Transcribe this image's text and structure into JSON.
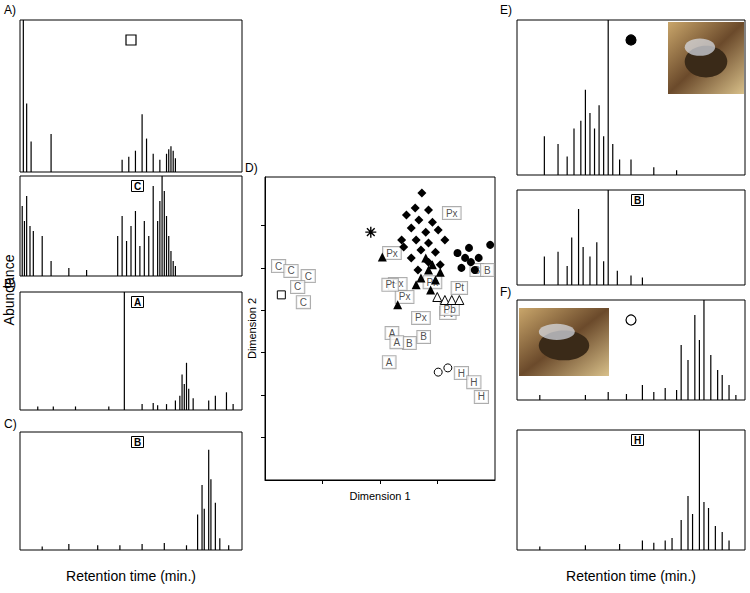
{
  "figure": {
    "y_label": "Abundance",
    "x_labels": [
      "Retention time (min.)",
      "Retention time (min.)"
    ]
  },
  "chart_data": [
    {
      "type": "chromatogram",
      "panel": "A)",
      "marker": "open_square",
      "xlim": [
        0,
        100
      ],
      "ylim": [
        0,
        100
      ],
      "tick_labels": false,
      "series": [
        {
          "x": [
            1.5,
            3,
            5,
            14,
            46,
            49,
            52,
            55,
            57,
            60,
            63,
            66,
            67,
            68,
            69,
            70
          ],
          "values": [
            100,
            45,
            20,
            25,
            8,
            10,
            14,
            38,
            22,
            12,
            8,
            12,
            15,
            17,
            14,
            9
          ]
        }
      ]
    },
    {
      "type": "chromatogram",
      "label": "C",
      "xlim": [
        0,
        100
      ],
      "ylim": [
        0,
        100
      ],
      "tick_labels": false,
      "series": [
        {
          "x": [
            1,
            2,
            3,
            4.5,
            6,
            10,
            14,
            22,
            30,
            44,
            46,
            48,
            50,
            52,
            54,
            56,
            58,
            60,
            62,
            63,
            64,
            65,
            66,
            67,
            68,
            69,
            70
          ],
          "values": [
            70,
            55,
            80,
            50,
            45,
            40,
            15,
            8,
            6,
            40,
            60,
            35,
            50,
            65,
            30,
            55,
            40,
            90,
            55,
            75,
            100,
            85,
            60,
            40,
            25,
            15,
            10
          ]
        }
      ]
    },
    {
      "type": "chromatogram",
      "panel": "B)",
      "label": "A",
      "xlim": [
        0,
        100
      ],
      "ylim": [
        0,
        100
      ],
      "tick_labels": false,
      "series": [
        {
          "x": [
            8,
            15,
            25,
            40,
            47,
            55,
            60,
            62,
            66,
            70,
            72,
            73,
            74,
            75,
            76,
            78,
            85,
            88,
            93,
            96
          ],
          "values": [
            3,
            3,
            3,
            3,
            100,
            5,
            6,
            4,
            5,
            8,
            12,
            30,
            22,
            40,
            18,
            10,
            8,
            12,
            15,
            5
          ]
        }
      ]
    },
    {
      "type": "chromatogram",
      "panel": "C)",
      "label": "B",
      "xlim": [
        0,
        100
      ],
      "ylim": [
        0,
        100
      ],
      "tick_labels": false,
      "series": [
        {
          "x": [
            10,
            22,
            35,
            45,
            55,
            65,
            75,
            80,
            82,
            83,
            85,
            86,
            88,
            90,
            94
          ],
          "values": [
            3,
            5,
            4,
            4,
            5,
            6,
            4,
            30,
            55,
            35,
            85,
            60,
            40,
            10,
            4
          ]
        }
      ]
    },
    {
      "type": "scatter",
      "panel": "D)",
      "x_label": "Dimension 1",
      "y_label": "Dimension 2",
      "xlim": [
        0,
        100
      ],
      "ylim": [
        0,
        100
      ],
      "xticks": [
        25,
        50,
        75
      ],
      "yticks": [
        14,
        28,
        42,
        56,
        70,
        84
      ],
      "tick_labels": false,
      "series": [
        {
          "marker": "open_square",
          "x": [
            7.1
          ],
          "y": [
            61.1
          ]
        },
        {
          "marker": "boxed_text",
          "label": "C",
          "x": [
            5.9,
            11.3,
            18.8,
            14.2,
            16.7
          ],
          "y": [
            70.6,
            69.0,
            67.3,
            63.7,
            58.7
          ]
        },
        {
          "marker": "asterisk",
          "x": [
            46.0
          ],
          "y": [
            81.8
          ]
        },
        {
          "marker": "diamond",
          "x": [
            68.2,
            65.3,
            71.1,
            61.5,
            66.9,
            72.8,
            63.6,
            69.9,
            75.3,
            59.4,
            65.7,
            71.1,
            67.8,
            74.1,
            63.6,
            71.1,
            76.2,
            66.5,
            60.3,
            78.2
          ],
          "y": [
            94.7,
            89.8,
            89.1,
            87.5,
            85.8,
            85.1,
            83.2,
            81.8,
            82.5,
            79.2,
            79.2,
            78.2,
            75.9,
            75.2,
            73.3,
            71.9,
            71.0,
            69.3,
            76.9,
            79.2
          ]
        },
        {
          "marker": "triangle",
          "x": [
            51.0,
            69.9,
            72.8,
            71.1,
            67.8,
            74.1,
            76.2,
            57.7,
            72.0,
            65.7
          ],
          "y": [
            73.6,
            73.3,
            71.0,
            69.3,
            66.7,
            66.0,
            68.6,
            57.8,
            62.7,
            64.4
          ]
        },
        {
          "marker": "open_triangle",
          "x": [
            74.9,
            78.2,
            81.2,
            84.5
          ],
          "y": [
            60.4,
            59.4,
            59.4,
            59.4
          ]
        },
        {
          "marker": "circle",
          "x": [
            83.7,
            87.0,
            89.5,
            92.9,
            97.9,
            85.4,
            91.2,
            88.7
          ],
          "y": [
            74.9,
            73.3,
            71.9,
            73.3,
            77.6,
            70.0,
            69.3,
            76.6
          ]
        },
        {
          "marker": "open_circle",
          "x": [
            75.3,
            79.5
          ],
          "y": [
            35.6,
            37.0
          ]
        },
        {
          "marker": "boxed_text",
          "label": "H",
          "x": [
            85.4,
            90.8,
            94.1
          ],
          "y": [
            35.3,
            32.3,
            27.4
          ]
        },
        {
          "marker": "boxed_text",
          "label": "B",
          "x": [
            92.1,
            96.7,
            62.8,
            69.0
          ],
          "y": [
            69.3,
            69.3,
            45.2,
            47.2
          ]
        },
        {
          "marker": "boxed_text",
          "label": "A",
          "x": [
            55.2,
            57.3,
            54.0
          ],
          "y": [
            48.5,
            45.5,
            38.9
          ]
        },
        {
          "marker": "boxed_text",
          "label": "Px",
          "x": [
            81.2,
            55.2,
            57.7,
            60.7,
            67.8,
            72.8
          ],
          "y": [
            88.1,
            74.9,
            64.7,
            60.4,
            53.5,
            65.3
          ]
        },
        {
          "marker": "boxed_text",
          "label": "Pt",
          "x": [
            54.4,
            84.5,
            79.5
          ],
          "y": [
            64.4,
            63.4,
            55.1
          ]
        },
        {
          "marker": "boxed_text",
          "label": "Pb",
          "x": [
            80.3
          ],
          "y": [
            56.4
          ]
        }
      ]
    },
    {
      "type": "chromatogram",
      "panel": "E)",
      "marker": "circle",
      "xlim": [
        0,
        100
      ],
      "ylim": [
        0,
        100
      ],
      "tick_labels": false,
      "series": [
        {
          "x": [
            12,
            18,
            22,
            25,
            28,
            30,
            32,
            34,
            36,
            38,
            40,
            42,
            45,
            50,
            60,
            70
          ],
          "values": [
            25,
            20,
            12,
            30,
            35,
            55,
            40,
            30,
            45,
            25,
            100,
            20,
            10,
            10,
            5,
            3
          ]
        }
      ]
    },
    {
      "type": "chromatogram",
      "label": "B",
      "xlim": [
        0,
        100
      ],
      "ylim": [
        0,
        100
      ],
      "tick_labels": false,
      "series": [
        {
          "x": [
            12,
            18,
            22,
            24,
            27,
            29,
            32,
            35,
            38,
            40,
            44,
            50,
            55
          ],
          "values": [
            30,
            35,
            20,
            50,
            80,
            40,
            30,
            45,
            25,
            100,
            15,
            10,
            8
          ]
        }
      ]
    },
    {
      "type": "chromatogram",
      "panel": "F)",
      "marker": "open_circle",
      "xlim": [
        0,
        100
      ],
      "ylim": [
        0,
        100
      ],
      "tick_labels": false,
      "series": [
        {
          "x": [
            10,
            30,
            40,
            48,
            55,
            60,
            65,
            70,
            72,
            75,
            78,
            80,
            82,
            85,
            88,
            90,
            93,
            96
          ],
          "values": [
            5,
            5,
            8,
            6,
            15,
            8,
            12,
            10,
            55,
            40,
            85,
            60,
            100,
            45,
            30,
            25,
            15,
            5
          ]
        }
      ]
    },
    {
      "type": "chromatogram",
      "label": "H",
      "xlim": [
        0,
        100
      ],
      "ylim": [
        0,
        100
      ],
      "tick_labels": false,
      "series": [
        {
          "x": [
            10,
            30,
            45,
            55,
            60,
            65,
            68,
            72,
            75,
            77,
            80,
            82,
            84,
            87,
            90,
            93
          ],
          "values": [
            3,
            4,
            5,
            8,
            6,
            8,
            10,
            25,
            45,
            30,
            100,
            40,
            35,
            20,
            15,
            8
          ]
        }
      ]
    }
  ]
}
